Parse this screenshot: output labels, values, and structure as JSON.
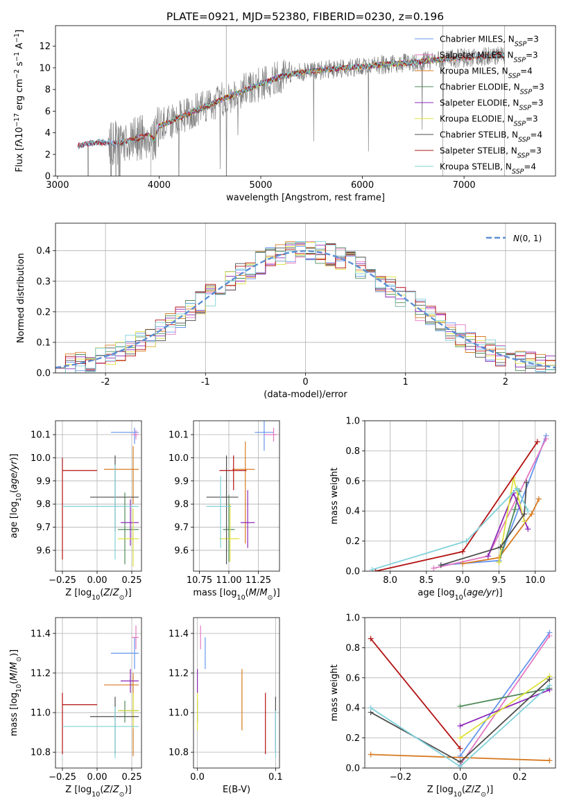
{
  "figure": {
    "title": "PLATE=0921, MJD=52380, FIBERID=0230, z=0.196"
  },
  "colors": [
    "#6495ed",
    "#e377c2",
    "#d67a20",
    "#4f8a58",
    "#8b27b8",
    "#dde03a",
    "#4d4d4d",
    "#b21010",
    "#7fd0d8"
  ],
  "data_color": "#808080",
  "model_names": [
    "Chabrier MILES, N_SSP=3",
    "Salpeter MILES, N_SSP=3",
    "Kroupa MILES, N_SSP=4",
    "Chabrier ELODIE, N_SSP=3",
    "Salpeter ELODIE, N_SSP=3",
    "Kroupa ELODIE, N_SSP=3",
    "Chabrier STELIB, N_SSP=4",
    "Salpeter STELIB, N_SSP=3",
    "Kroupa STELIB, N_SSP=4"
  ],
  "chart_data": [
    {
      "id": "spectrum",
      "type": "line",
      "xlabel": "wavelength [Angstrom, rest frame]",
      "ylabel": "Flux [fλ10^-17 erg cm^-2 s^-1 A^-1]",
      "xlim": [
        2980,
        7900
      ],
      "ylim": [
        0,
        13.9
      ],
      "xticks": [
        3000,
        4000,
        5000,
        6000,
        7000
      ],
      "yticks": [
        0,
        2,
        4,
        6,
        8,
        10,
        12
      ],
      "legend": {
        "placement": "upper right",
        "entries": [
          {
            "base": "Chabrier MILES, N",
            "sub": "SSP",
            "tail": "=3"
          },
          {
            "base": "Salpeter MILES, N",
            "sub": "SSP",
            "tail": "=3"
          },
          {
            "base": "Kroupa MILES, N",
            "sub": "SSP",
            "tail": "=4"
          },
          {
            "base": "Chabrier ELODIE, N",
            "sub": "SSP",
            "tail": "=3"
          },
          {
            "base": "Salpeter ELODIE, N",
            "sub": "SSP",
            "tail": "=3"
          },
          {
            "base": "Kroupa ELODIE, N",
            "sub": "SSP",
            "tail": "=3"
          },
          {
            "base": "Chabrier STELIB, N",
            "sub": "SSP",
            "tail": "=4"
          },
          {
            "base": "Salpeter STELIB, N",
            "sub": "SSP",
            "tail": "=3"
          },
          {
            "base": "Kroupa STELIB, N",
            "sub": "SSP",
            "tail": "=4"
          }
        ]
      },
      "continuum": {
        "wavelength": [
          3200,
          3300,
          3400,
          3500,
          3600,
          3700,
          3800,
          3900,
          3950,
          4000,
          4200,
          4400,
          4600,
          4800,
          5000,
          5200,
          5400,
          5600,
          5800,
          6000,
          6200,
          6500,
          6800,
          7100,
          7400
        ],
        "flux": [
          2.8,
          3.0,
          3.1,
          3.1,
          3.0,
          3.3,
          3.5,
          3.8,
          3.3,
          4.6,
          5.4,
          6.2,
          7.0,
          7.8,
          8.5,
          9.2,
          9.6,
          9.8,
          10.0,
          10.1,
          10.3,
          10.5,
          10.8,
          11.0,
          11.2
        ]
      },
      "model_ranges": [
        [
          3200,
          7400
        ],
        [
          3200,
          7400
        ],
        [
          3550,
          7400
        ],
        [
          3900,
          6800
        ],
        [
          3900,
          6800
        ],
        [
          3900,
          6800
        ],
        [
          3200,
          7400
        ],
        [
          3200,
          7400
        ],
        [
          3200,
          7400
        ]
      ]
    },
    {
      "id": "residual_histogram",
      "type": "histogram",
      "xlabel": "(data-model)/error",
      "ylabel": "Normed distribution",
      "xlim": [
        -2.5,
        2.5
      ],
      "ylim": [
        0,
        0.49
      ],
      "xticks": [
        -2,
        -1,
        0,
        1,
        2
      ],
      "yticks": [
        0.0,
        0.1,
        0.2,
        0.3,
        0.4
      ],
      "legend": {
        "placement": "upper right",
        "entries": [
          "N(0,1)"
        ]
      },
      "bin_width": 0.1,
      "reference": "gaussian N(0,1)"
    },
    {
      "id": "age_vs_z",
      "type": "errorbar",
      "xlabel": "Z [log10(Z/Z_sun)]",
      "ylabel": "age [log10(age/yr)]",
      "xlim": [
        -0.3,
        0.32
      ],
      "ylim": [
        9.51,
        10.16
      ],
      "xticks": [
        -0.25,
        0.0,
        0.25
      ],
      "xtick_labels": [
        "−0.25",
        "0.00",
        "0.25"
      ],
      "yticks": [
        9.6,
        9.7,
        9.8,
        9.9,
        10.0,
        10.1
      ],
      "ytick_labels": [
        "9.6",
        "9.7",
        "9.8",
        "9.9",
        "10.0",
        "10.1"
      ],
      "points": [
        {
          "x": 0.27,
          "x_lo": 0.1,
          "x_hi": 0.3,
          "y": 10.11,
          "y_lo": 10.06,
          "y_hi": 10.13
        },
        {
          "x": 0.28,
          "x_lo": 0.25,
          "x_hi": 0.3,
          "y": 10.1,
          "y_lo": 10.08,
          "y_hi": 10.12
        },
        {
          "x": 0.26,
          "x_lo": 0.05,
          "x_hi": 0.3,
          "y": 9.95,
          "y_lo": 9.8,
          "y_hi": 10.05
        },
        {
          "x": 0.2,
          "x_lo": 0.15,
          "x_hi": 0.3,
          "y": 9.69,
          "y_lo": 9.54,
          "y_hi": 9.85
        },
        {
          "x": 0.24,
          "x_lo": 0.17,
          "x_hi": 0.3,
          "y": 9.72,
          "y_lo": 9.62,
          "y_hi": 9.82
        },
        {
          "x": 0.26,
          "x_lo": 0.15,
          "x_hi": 0.3,
          "y": 9.65,
          "y_lo": 9.53,
          "y_hi": 9.78
        },
        {
          "x": 0.13,
          "x_lo": -0.05,
          "x_hi": 0.3,
          "y": 9.83,
          "y_lo": 9.68,
          "y_hi": 10.01
        },
        {
          "x": -0.25,
          "x_lo": -0.25,
          "x_hi": 0.0,
          "y": 9.945,
          "y_lo": 9.56,
          "y_hi": 10.0
        },
        {
          "x": 0.13,
          "x_lo": -0.25,
          "x_hi": 0.3,
          "y": 9.79,
          "y_lo": 9.56,
          "y_hi": 9.97
        }
      ]
    },
    {
      "id": "age_vs_mass",
      "type": "errorbar",
      "xlabel": "mass [log10(M/M_sun)]",
      "ylabel": "",
      "xlim": [
        10.7,
        11.43
      ],
      "ylim": [
        9.51,
        10.16
      ],
      "xticks": [
        10.75,
        11.0,
        11.25
      ],
      "xtick_labels": [
        "10.75",
        "11.00",
        "11.25"
      ],
      "yticks": [
        9.6,
        9.7,
        9.8,
        9.9,
        10.0,
        10.1
      ],
      "ytick_labels": [
        "9.6",
        "9.7",
        "9.8",
        "9.9",
        "10.0",
        "10.1"
      ],
      "points": [
        {
          "x": 11.3,
          "x_lo": 11.22,
          "x_hi": 11.38,
          "y": 10.11,
          "y_lo": 10.03,
          "y_hi": 10.16
        },
        {
          "x": 11.38,
          "x_lo": 11.3,
          "x_hi": 11.41,
          "y": 10.1,
          "y_lo": 10.07,
          "y_hi": 10.13
        },
        {
          "x": 11.14,
          "x_lo": 11.03,
          "x_hi": 11.22,
          "y": 9.95,
          "y_lo": 9.63,
          "y_hi": 10.07
        },
        {
          "x": 11.0,
          "x_lo": 10.95,
          "x_hi": 11.05,
          "y": 9.69,
          "y_lo": 9.55,
          "y_hi": 9.84
        },
        {
          "x": 11.16,
          "x_lo": 11.1,
          "x_hi": 11.22,
          "y": 9.72,
          "y_lo": 9.61,
          "y_hi": 9.86
        },
        {
          "x": 11.01,
          "x_lo": 10.92,
          "x_hi": 11.09,
          "y": 9.65,
          "y_lo": 9.55,
          "y_hi": 9.8
        },
        {
          "x": 10.98,
          "x_lo": 10.81,
          "x_hi": 11.08,
          "y": 9.83,
          "y_lo": 9.54,
          "y_hi": 10.01
        },
        {
          "x": 11.04,
          "x_lo": 10.92,
          "x_hi": 11.15,
          "y": 9.945,
          "y_lo": 9.86,
          "y_hi": 10.01
        },
        {
          "x": 10.93,
          "x_lo": 10.81,
          "x_hi": 11.02,
          "y": 9.79,
          "y_lo": 9.61,
          "y_hi": 9.92
        }
      ]
    },
    {
      "id": "weight_vs_age",
      "type": "line",
      "xlabel": "age [log10(age/yr)]",
      "ylabel": "mass weight",
      "xlim": [
        7.65,
        10.28
      ],
      "ylim": [
        0,
        1.0
      ],
      "xticks": [
        8.0,
        8.5,
        9.0,
        9.5,
        10.0
      ],
      "xtick_labels": [
        "8.0",
        "8.5",
        "9.0",
        "9.5",
        "10.0"
      ],
      "yticks": [
        0.0,
        0.2,
        0.4,
        0.6,
        0.8,
        1.0
      ],
      "ytick_labels": [
        "0.0",
        "0.2",
        "0.4",
        "0.6",
        "0.8",
        "1.0"
      ],
      "series": [
        {
          "x": [
            8.7,
            9.5,
            10.15
          ],
          "y": [
            0.04,
            0.07,
            0.9
          ]
        },
        {
          "x": [
            8.6,
            9.35,
            10.15
          ],
          "y": [
            0.02,
            0.1,
            0.88
          ]
        },
        {
          "x": [
            9.0,
            9.5,
            9.95,
            10.05
          ],
          "y": [
            0.05,
            0.09,
            0.38,
            0.48
          ]
        },
        {
          "x": [
            9.5,
            9.72,
            9.78
          ],
          "y": [
            0.06,
            0.41,
            0.53
          ]
        },
        {
          "x": [
            9.35,
            9.7,
            9.9
          ],
          "y": [
            0.1,
            0.52,
            0.28
          ]
        },
        {
          "x": [
            9.5,
            9.7,
            9.85
          ],
          "y": [
            0.06,
            0.62,
            0.33
          ]
        },
        {
          "x": [
            8.7,
            9.52,
            9.85,
            9.88
          ],
          "y": [
            0.04,
            0.16,
            0.38,
            0.59
          ]
        },
        {
          "x": [
            7.8,
            9.0,
            10.03
          ],
          "y": [
            0.0,
            0.13,
            0.86
          ]
        },
        {
          "x": [
            7.75,
            9.05,
            9.75,
            9.9
          ],
          "y": [
            0.01,
            0.2,
            0.55,
            0.4
          ]
        }
      ]
    },
    {
      "id": "mass_vs_z",
      "type": "errorbar",
      "xlabel": "Z [log10(Z/Z_sun)]",
      "ylabel": "mass [log10(M/M_sun)]",
      "xlim": [
        -0.3,
        0.32
      ],
      "ylim": [
        10.72,
        11.48
      ],
      "xticks": [
        -0.25,
        0.0,
        0.25
      ],
      "xtick_labels": [
        "−0.25",
        "0.00",
        "0.25"
      ],
      "yticks": [
        10.8,
        11.0,
        11.2,
        11.4
      ],
      "ytick_labels": [
        "10.8",
        "11.0",
        "11.2",
        "11.4"
      ],
      "points": [
        {
          "x": 0.27,
          "x_lo": 0.1,
          "x_hi": 0.3,
          "y": 11.3,
          "y_lo": 11.22,
          "y_hi": 11.38
        },
        {
          "x": 0.28,
          "x_lo": 0.25,
          "x_hi": 0.3,
          "y": 11.38,
          "y_lo": 11.32,
          "y_hi": 11.44
        },
        {
          "x": 0.26,
          "x_lo": 0.05,
          "x_hi": 0.3,
          "y": 11.14,
          "y_lo": 10.78,
          "y_hi": 11.2
        },
        {
          "x": 0.2,
          "x_lo": 0.15,
          "x_hi": 0.3,
          "y": 11.01,
          "y_lo": 10.95,
          "y_hi": 11.06
        },
        {
          "x": 0.24,
          "x_lo": 0.17,
          "x_hi": 0.3,
          "y": 11.16,
          "y_lo": 11.1,
          "y_hi": 11.22
        },
        {
          "x": 0.26,
          "x_lo": 0.15,
          "x_hi": 0.3,
          "y": 11.01,
          "y_lo": 10.92,
          "y_hi": 11.1
        },
        {
          "x": 0.13,
          "x_lo": -0.05,
          "x_hi": 0.3,
          "y": 10.98,
          "y_lo": 10.79,
          "y_hi": 11.08
        },
        {
          "x": -0.25,
          "x_lo": -0.25,
          "x_hi": 0.0,
          "y": 11.04,
          "y_lo": 10.79,
          "y_hi": 11.1
        },
        {
          "x": 0.13,
          "x_lo": -0.25,
          "x_hi": 0.3,
          "y": 10.93,
          "y_lo": 10.77,
          "y_hi": 11.03
        }
      ]
    },
    {
      "id": "mass_vs_ebv",
      "type": "errorbar",
      "xlabel": "E(B-V)",
      "ylabel": "",
      "xlim": [
        -0.005,
        0.105
      ],
      "ylim": [
        10.72,
        11.48
      ],
      "xticks": [
        0.0,
        0.1
      ],
      "xtick_labels": [
        "0.0",
        "0.1"
      ],
      "yticks": [
        10.8,
        11.0,
        11.2,
        11.4
      ],
      "ytick_labels": [
        "10.8",
        "11.0",
        "11.2",
        "11.4"
      ],
      "points": [
        {
          "x": 0.01,
          "y_lo": 11.22,
          "y_hi": 11.38
        },
        {
          "x": 0.004,
          "y_lo": 11.32,
          "y_hi": 11.44
        },
        {
          "x": 0.057,
          "y_lo": 10.91,
          "y_hi": 11.22
        },
        {
          "x": 0.0,
          "y_lo": 10.95,
          "y_hi": 11.06
        },
        {
          "x": 0.0,
          "y_lo": 11.1,
          "y_hi": 11.22
        },
        {
          "x": 0.0,
          "y_lo": 10.91,
          "y_hi": 11.1
        },
        {
          "x": 0.1,
          "y_lo": 10.8,
          "y_hi": 11.08
        },
        {
          "x": 0.087,
          "y_lo": 10.79,
          "y_hi": 11.1
        },
        {
          "x": 0.1,
          "y_lo": 10.77,
          "y_hi": 11.01
        }
      ]
    },
    {
      "id": "weight_vs_z",
      "type": "line",
      "xlabel": "Z [log10(Z/Z_sun)]",
      "ylabel": "mass weight",
      "xlim": [
        -0.32,
        0.32
      ],
      "ylim": [
        0,
        1.0
      ],
      "xticks": [
        -0.2,
        0.0,
        0.2
      ],
      "xtick_labels": [
        "−0.2",
        "0.0",
        "0.2"
      ],
      "yticks": [
        0.0,
        0.2,
        0.4,
        0.6,
        0.8,
        1.0
      ],
      "ytick_labels": [
        "0.0",
        "0.2",
        "0.4",
        "0.6",
        "0.8",
        "1.0"
      ],
      "series": [
        {
          "x": [
            0.0,
            0.3
          ],
          "y": [
            0.08,
            0.9
          ]
        },
        {
          "x": [
            0.0,
            0.3
          ],
          "y": [
            0.02,
            0.88
          ]
        },
        {
          "x": [
            -0.3,
            0.3
          ],
          "y": [
            0.09,
            0.05
          ]
        },
        {
          "x": [
            0.0,
            0.3
          ],
          "y": [
            0.41,
            0.53
          ]
        },
        {
          "x": [
            0.0,
            0.3
          ],
          "y": [
            0.28,
            0.52
          ]
        },
        {
          "x": [
            0.0,
            0.3
          ],
          "y": [
            0.2,
            0.61
          ]
        },
        {
          "x": [
            -0.3,
            0.0,
            0.3
          ],
          "y": [
            0.37,
            0.04,
            0.59
          ]
        },
        {
          "x": [
            -0.3,
            0.0
          ],
          "y": [
            0.86,
            0.13
          ]
        },
        {
          "x": [
            -0.3,
            0.0,
            0.3
          ],
          "y": [
            0.4,
            0.01,
            0.55
          ]
        }
      ]
    }
  ]
}
